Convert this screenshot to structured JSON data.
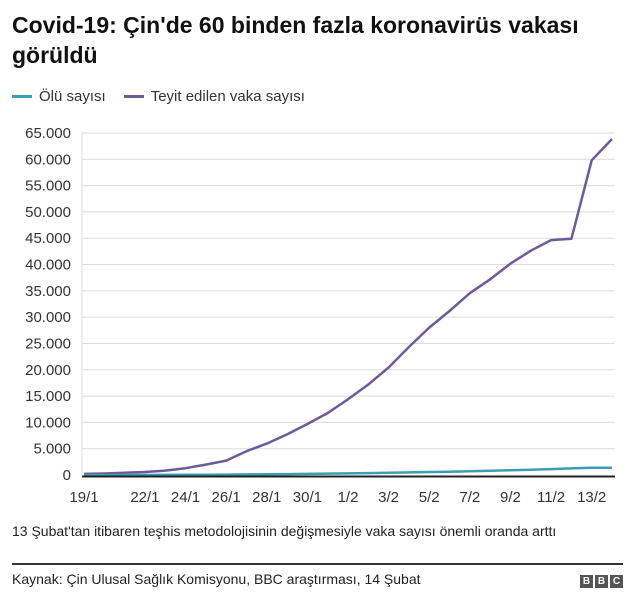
{
  "header": {
    "title": "Covid-19: Çin'de 60 binden fazla koronavirüs vakası görüldü"
  },
  "legend": [
    {
      "label": "Ölü sayısı",
      "color": "#3d9db5"
    },
    {
      "label": "Teyit edilen vaka sayısı",
      "color": "#6e5a9a"
    }
  ],
  "footer": {
    "note": "13 Şubat'tan itibaren teşhis metodolojisinin değişmesiyle vaka sayısı önemli oranda arttı",
    "source": "Kaynak: Çin Ulusal Sağlık Komisyonu, BBC araştırması, 14 Şubat",
    "logo": [
      "B",
      "B",
      "C"
    ]
  },
  "chart_data": {
    "type": "line",
    "title": "Covid-19: Çin'de 60 binden fazla koronavirüs vakası görüldü",
    "xlabel": "",
    "ylabel": "",
    "ylim": [
      0,
      65000
    ],
    "yticks": [
      0,
      5000,
      10000,
      15000,
      20000,
      25000,
      30000,
      35000,
      40000,
      45000,
      50000,
      55000,
      60000,
      65000
    ],
    "ytick_labels": [
      "0",
      "5.000",
      "10.000",
      "15.000",
      "20.000",
      "25.000",
      "30.000",
      "35.000",
      "40.000",
      "45.000",
      "50.000",
      "55.000",
      "60.000",
      "65.000"
    ],
    "xtick_labels": [
      "19/1",
      "22/1",
      "24/1",
      "26/1",
      "28/1",
      "30/1",
      "1/2",
      "3/2",
      "5/2",
      "7/2",
      "9/2",
      "11/2",
      "13/2"
    ],
    "grid": true,
    "legend_position": "top-left",
    "x": [
      "19/1",
      "20/1",
      "21/1",
      "22/1",
      "23/1",
      "24/1",
      "25/1",
      "26/1",
      "27/1",
      "28/1",
      "29/1",
      "30/1",
      "31/1",
      "1/2",
      "2/2",
      "3/2",
      "4/2",
      "5/2",
      "6/2",
      "7/2",
      "8/2",
      "9/2",
      "10/2",
      "11/2",
      "12/2",
      "13/2",
      "14/2"
    ],
    "series": [
      {
        "name": "Ölü sayısı",
        "color": "#3d9db5",
        "values": [
          3,
          6,
          9,
          17,
          25,
          41,
          56,
          80,
          106,
          132,
          170,
          213,
          259,
          304,
          361,
          425,
          490,
          563,
          636,
          722,
          811,
          908,
          1016,
          1113,
          1259,
          1380,
          1383
        ]
      },
      {
        "name": "Teyit edilen vaka sayısı",
        "color": "#6e5a9a",
        "values": [
          201,
          291,
          440,
          571,
          830,
          1287,
          1975,
          2744,
          4515,
          5974,
          7711,
          9692,
          11791,
          14380,
          17205,
          20438,
          24324,
          28018,
          31161,
          34546,
          37198,
          40171,
          42638,
          44653,
          44900,
          59804,
          63851
        ]
      }
    ]
  }
}
